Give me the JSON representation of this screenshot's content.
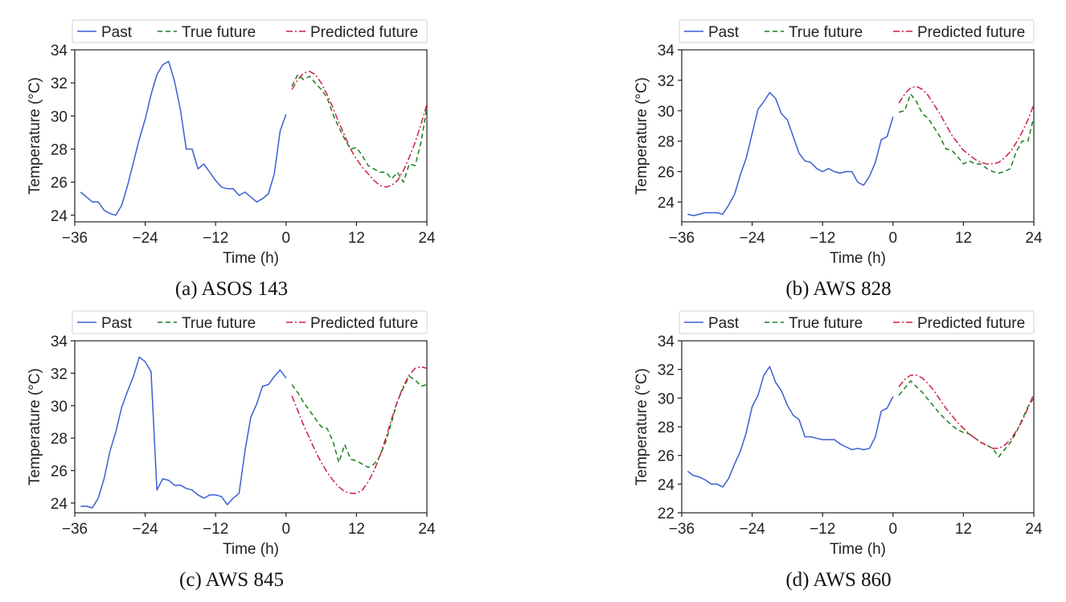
{
  "chart_data": [
    {
      "type": "line",
      "caption": "(a) ASOS 143",
      "xlabel": "Time (h)",
      "ylabel": "Temperature (°C)",
      "xlim": [
        -36,
        24
      ],
      "ylim": [
        23.6,
        34
      ],
      "xticks": [
        -36,
        -24,
        -12,
        0,
        12,
        24
      ],
      "yticks": [
        24,
        26,
        28,
        30,
        32,
        34
      ],
      "legend": "top",
      "series": [
        {
          "name": "Past",
          "color": "#3b5fd0",
          "dash": "solid",
          "x": [
            -35,
            -34,
            -33,
            -32,
            -31,
            -30,
            -29,
            -28,
            -27,
            -26,
            -25,
            -24,
            -23,
            -22,
            -21,
            -20,
            -19,
            -18,
            -17,
            -16,
            -15,
            -14,
            -13,
            -12,
            -11,
            -10,
            -9,
            -8,
            -7,
            -6,
            -5,
            -4,
            -3,
            -2,
            -1,
            0
          ],
          "y": [
            25.4,
            25.1,
            24.8,
            24.8,
            24.3,
            24.1,
            24.0,
            24.6,
            25.8,
            27.2,
            28.6,
            29.8,
            31.3,
            32.5,
            33.1,
            33.3,
            32.1,
            30.4,
            28.0,
            28.0,
            26.8,
            27.1,
            26.6,
            26.1,
            25.7,
            25.6,
            25.6,
            25.2,
            25.4,
            25.1,
            24.8,
            25.0,
            25.3,
            26.5,
            29.1,
            30.1
          ]
        },
        {
          "name": "True future",
          "color": "#1a7f1a",
          "dash": "6,4",
          "x": [
            1,
            2,
            3,
            4,
            5,
            6,
            7,
            8,
            9,
            10,
            11,
            12,
            13,
            14,
            15,
            16,
            17,
            18,
            19,
            20,
            21,
            22,
            23,
            24
          ],
          "y": [
            31.8,
            32.5,
            32.2,
            32.4,
            32.0,
            31.6,
            31.1,
            30.1,
            29.3,
            28.6,
            28.0,
            28.1,
            27.6,
            27.0,
            26.8,
            26.6,
            26.6,
            26.2,
            26.6,
            26.0,
            27.1,
            27.0,
            28.4,
            30.5
          ]
        },
        {
          "name": "Predicted future",
          "color": "#cc1f44",
          "dash": "8,3,2,3",
          "x": [
            1,
            2,
            3,
            4,
            5,
            6,
            7,
            8,
            9,
            10,
            11,
            12,
            13,
            14,
            15,
            16,
            17,
            18,
            19,
            20,
            21,
            22,
            23,
            24
          ],
          "y": [
            31.6,
            32.2,
            32.6,
            32.7,
            32.5,
            32.0,
            31.3,
            30.5,
            29.6,
            28.8,
            28.0,
            27.4,
            26.9,
            26.5,
            26.1,
            25.8,
            25.7,
            25.8,
            26.1,
            26.7,
            27.5,
            28.4,
            29.5,
            30.7
          ]
        }
      ]
    },
    {
      "type": "line",
      "caption": "(b) AWS 828",
      "xlabel": "Time (h)",
      "ylabel": "Temperature (°C)",
      "xlim": [
        -36,
        24
      ],
      "ylim": [
        22.7,
        34
      ],
      "xticks": [
        -36,
        -24,
        -12,
        0,
        12,
        24
      ],
      "yticks": [
        24,
        26,
        28,
        30,
        32,
        34
      ],
      "legend": "top",
      "series": [
        {
          "name": "Past",
          "color": "#3b5fd0",
          "dash": "solid",
          "x": [
            -35,
            -34,
            -33,
            -32,
            -31,
            -30,
            -29,
            -28,
            -27,
            -26,
            -25,
            -24,
            -23,
            -22,
            -21,
            -20,
            -19,
            -18,
            -17,
            -16,
            -15,
            -14,
            -13,
            -12,
            -11,
            -10,
            -9,
            -8,
            -7,
            -6,
            -5,
            -4,
            -3,
            -2,
            -1,
            0
          ],
          "y": [
            23.2,
            23.1,
            23.2,
            23.3,
            23.3,
            23.3,
            23.2,
            23.8,
            24.5,
            25.8,
            26.9,
            28.5,
            30.1,
            30.6,
            31.2,
            30.8,
            29.8,
            29.4,
            28.3,
            27.2,
            26.7,
            26.6,
            26.2,
            26.0,
            26.2,
            26.0,
            25.9,
            26.0,
            26.0,
            25.3,
            25.1,
            25.7,
            26.6,
            28.1,
            28.3,
            29.6
          ]
        },
        {
          "name": "True future",
          "color": "#1a7f1a",
          "dash": "6,4",
          "x": [
            1,
            2,
            3,
            4,
            5,
            6,
            7,
            8,
            9,
            10,
            11,
            12,
            13,
            14,
            15,
            16,
            17,
            18,
            19,
            20,
            21,
            22,
            23,
            24
          ],
          "y": [
            29.9,
            30.0,
            31.1,
            30.6,
            29.8,
            29.5,
            28.9,
            28.3,
            27.5,
            27.4,
            27.0,
            26.5,
            26.7,
            26.5,
            26.5,
            26.2,
            26.0,
            25.9,
            26.0,
            26.2,
            27.3,
            28.0,
            28.0,
            29.6
          ]
        },
        {
          "name": "Predicted future",
          "color": "#cc1f44",
          "dash": "8,3,2,3",
          "x": [
            1,
            2,
            3,
            4,
            5,
            6,
            7,
            8,
            9,
            10,
            11,
            12,
            13,
            14,
            15,
            16,
            17,
            18,
            19,
            20,
            21,
            22,
            23,
            24
          ],
          "y": [
            30.5,
            31.1,
            31.5,
            31.6,
            31.4,
            31.0,
            30.4,
            29.8,
            29.1,
            28.4,
            27.9,
            27.4,
            27.1,
            26.8,
            26.6,
            26.5,
            26.5,
            26.6,
            26.9,
            27.3,
            27.9,
            28.6,
            29.4,
            30.4
          ]
        }
      ]
    },
    {
      "type": "line",
      "caption": "(c) AWS 845",
      "xlabel": "Time (h)",
      "ylabel": "Temperature (°C)",
      "xlim": [
        -36,
        24
      ],
      "ylim": [
        23.4,
        34
      ],
      "xticks": [
        -36,
        -24,
        -12,
        0,
        12,
        24
      ],
      "yticks": [
        24,
        26,
        28,
        30,
        32,
        34
      ],
      "legend": "top",
      "series": [
        {
          "name": "Past",
          "color": "#3b5fd0",
          "dash": "solid",
          "x": [
            -35,
            -34,
            -33,
            -32,
            -31,
            -30,
            -29,
            -28,
            -27,
            -26,
            -25,
            -24,
            -23,
            -22,
            -21,
            -20,
            -19,
            -18,
            -17,
            -16,
            -15,
            -14,
            -13,
            -12,
            -11,
            -10,
            -9,
            -8,
            -7,
            -6,
            -5,
            -4,
            -3,
            -2,
            -1,
            0
          ],
          "y": [
            23.8,
            23.8,
            23.7,
            24.3,
            25.5,
            27.2,
            28.4,
            29.9,
            30.9,
            31.8,
            33.0,
            32.7,
            32.1,
            24.8,
            25.5,
            25.4,
            25.1,
            25.1,
            24.9,
            24.8,
            24.5,
            24.3,
            24.5,
            24.5,
            24.4,
            23.9,
            24.3,
            24.6,
            27.2,
            29.3,
            30.1,
            31.2,
            31.3,
            31.8,
            32.2,
            31.7
          ]
        },
        {
          "name": "True future",
          "color": "#1a7f1a",
          "dash": "6,4",
          "x": [
            1,
            2,
            3,
            4,
            5,
            6,
            7,
            8,
            9,
            10,
            11,
            12,
            13,
            14,
            15,
            16,
            17,
            18,
            19,
            20,
            21,
            22,
            23,
            24
          ],
          "y": [
            31.3,
            30.8,
            30.2,
            29.7,
            29.2,
            28.7,
            28.6,
            27.8,
            26.5,
            27.6,
            26.7,
            26.6,
            26.4,
            26.2,
            26.4,
            26.9,
            27.8,
            29.0,
            30.3,
            31.1,
            31.8,
            31.6,
            31.2,
            31.3
          ]
        },
        {
          "name": "Predicted future",
          "color": "#cc1f44",
          "dash": "8,3,2,3",
          "x": [
            1,
            2,
            3,
            4,
            5,
            6,
            7,
            8,
            9,
            10,
            11,
            12,
            13,
            14,
            15,
            16,
            17,
            18,
            19,
            20,
            21,
            22,
            23,
            24
          ],
          "y": [
            30.6,
            29.7,
            28.8,
            28.0,
            27.2,
            26.5,
            25.9,
            25.4,
            25.0,
            24.7,
            24.6,
            24.6,
            24.8,
            25.3,
            26.0,
            26.9,
            28.0,
            29.2,
            30.3,
            31.2,
            31.9,
            32.3,
            32.4,
            32.3
          ]
        }
      ]
    },
    {
      "type": "line",
      "caption": "(d) AWS 860",
      "xlabel": "Time (h)",
      "ylabel": "Temperature (°C)",
      "xlim": [
        -36,
        24
      ],
      "ylim": [
        22,
        34
      ],
      "xticks": [
        -36,
        -24,
        -12,
        0,
        12,
        24
      ],
      "yticks": [
        22,
        24,
        26,
        28,
        30,
        32,
        34
      ],
      "legend": "top",
      "series": [
        {
          "name": "Past",
          "color": "#3b5fd0",
          "dash": "solid",
          "x": [
            -35,
            -34,
            -33,
            -32,
            -31,
            -30,
            -29,
            -28,
            -27,
            -26,
            -25,
            -24,
            -23,
            -22,
            -21,
            -20,
            -19,
            -18,
            -17,
            -16,
            -15,
            -14,
            -13,
            -12,
            -11,
            -10,
            -9,
            -8,
            -7,
            -6,
            -5,
            -4,
            -3,
            -2,
            -1,
            0
          ],
          "y": [
            24.9,
            24.6,
            24.5,
            24.3,
            24.0,
            24.0,
            23.8,
            24.4,
            25.4,
            26.3,
            27.6,
            29.4,
            30.2,
            31.6,
            32.2,
            31.1,
            30.5,
            29.5,
            28.8,
            28.5,
            27.3,
            27.3,
            27.2,
            27.1,
            27.1,
            27.1,
            26.8,
            26.6,
            26.4,
            26.5,
            26.4,
            26.5,
            27.3,
            29.1,
            29.3,
            30.1
          ]
        },
        {
          "name": "True future",
          "color": "#1a7f1a",
          "dash": "6,4",
          "x": [
            1,
            2,
            3,
            4,
            5,
            6,
            7,
            8,
            9,
            10,
            11,
            12,
            13,
            14,
            15,
            16,
            17,
            18,
            19,
            20,
            21,
            22,
            23,
            24
          ],
          "y": [
            30.2,
            30.7,
            31.2,
            30.8,
            30.4,
            29.9,
            29.4,
            28.9,
            28.5,
            28.1,
            27.8,
            27.6,
            27.5,
            27.2,
            26.9,
            26.7,
            26.5,
            25.9,
            26.4,
            26.9,
            27.6,
            28.5,
            29.4,
            30.0
          ]
        },
        {
          "name": "Predicted future",
          "color": "#cc1f44",
          "dash": "8,3,2,3",
          "x": [
            1,
            2,
            3,
            4,
            5,
            6,
            7,
            8,
            9,
            10,
            11,
            12,
            13,
            14,
            15,
            16,
            17,
            18,
            19,
            20,
            21,
            22,
            23,
            24
          ],
          "y": [
            30.8,
            31.3,
            31.6,
            31.6,
            31.4,
            31.0,
            30.5,
            29.9,
            29.3,
            28.8,
            28.3,
            27.9,
            27.5,
            27.2,
            26.9,
            26.7,
            26.5,
            26.5,
            26.7,
            27.1,
            27.7,
            28.4,
            29.3,
            30.3
          ]
        }
      ]
    }
  ]
}
